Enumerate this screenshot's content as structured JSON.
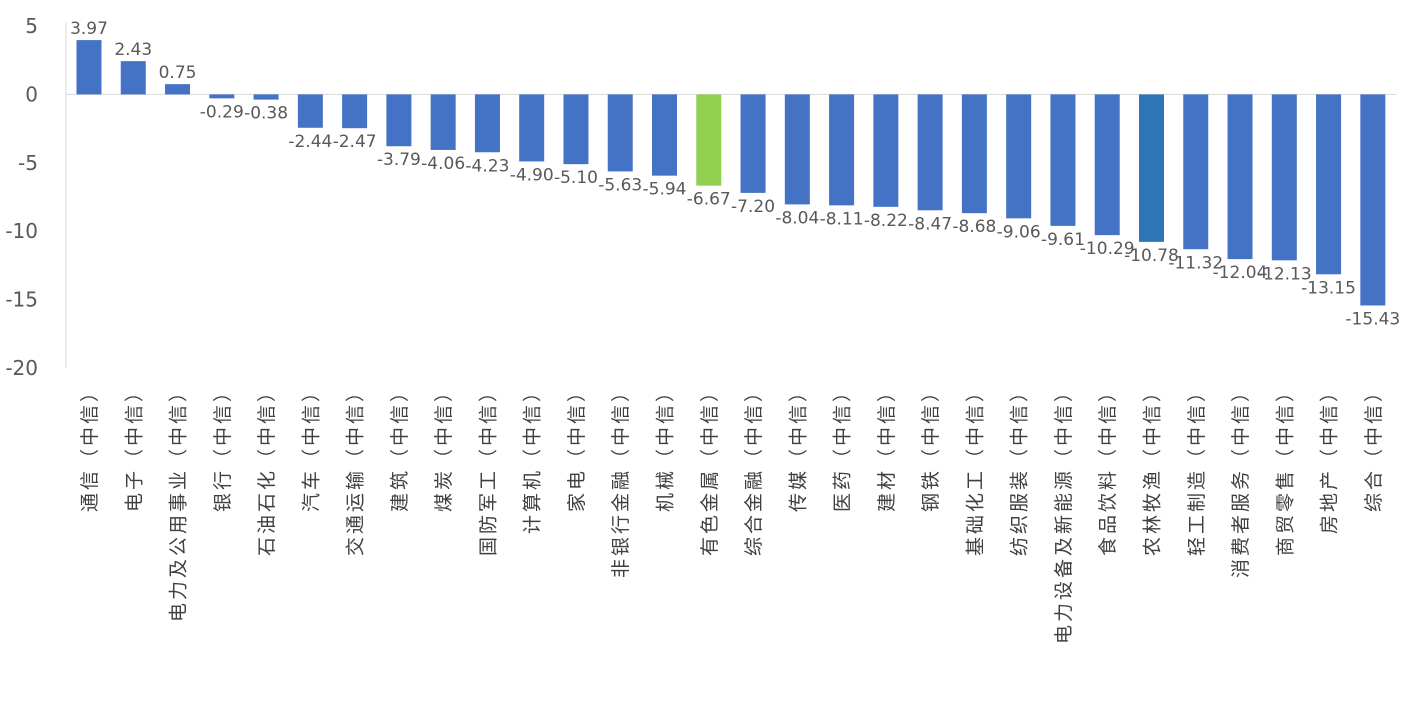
{
  "chart_data": {
    "type": "bar",
    "title": "",
    "xlabel": "",
    "ylabel": "",
    "ylim": [
      -20,
      5
    ],
    "yticks": [
      5,
      0,
      -5,
      -10,
      -15,
      -20
    ],
    "grid": false,
    "legend": "none",
    "categories": [
      "通信（中信）",
      "电子（中信）",
      "电力及公用事业（中信）",
      "银行（中信）",
      "石油石化（中信）",
      "汽车（中信）",
      "交通运输（中信）",
      "建筑（中信）",
      "煤炭（中信）",
      "国防军工（中信）",
      "计算机（中信）",
      "家电（中信）",
      "非银行金融（中信）",
      "机械（中信）",
      "有色金属（中信）",
      "综合金融（中信）",
      "传媒（中信）",
      "医药（中信）",
      "建材（中信）",
      "钢铁（中信）",
      "基础化工（中信）",
      "纺织服装（中信）",
      "电力设备及新能源（中信）",
      "食品饮料（中信）",
      "农林牧渔（中信）",
      "轻工制造（中信）",
      "消费者服务（中信）",
      "商贸零售（中信）",
      "房地产（中信）",
      "综合（中信）"
    ],
    "values": [
      3.97,
      2.43,
      0.75,
      -0.29,
      -0.38,
      -2.44,
      -2.47,
      -3.79,
      -4.06,
      -4.23,
      -4.9,
      -5.1,
      -5.63,
      -5.94,
      -6.67,
      -7.2,
      -8.04,
      -8.11,
      -8.22,
      -8.47,
      -8.68,
      -9.06,
      -9.61,
      -10.29,
      -10.78,
      -11.32,
      -12.04,
      -12.13,
      -13.15,
      -15.43
    ],
    "value_labels": [
      "3.97",
      "2.43",
      "0.75",
      "-0.29",
      "-0.38",
      "-2.44",
      "-2.47",
      "-3.79",
      "-4.06",
      "-4.23",
      "-4.90",
      "-5.10",
      "-5.63",
      "-5.94",
      "-6.67",
      "-7.20",
      "-8.04",
      "-8.11",
      "-8.22",
      "-8.47",
      "-8.68",
      "-9.06",
      "-9.61",
      "-10.29",
      "-10.78",
      "-11.32",
      "-12.04",
      "-12.13",
      "-13.15",
      "-15.43"
    ],
    "colors": {
      "default": "#4472C4",
      "highlight": "#92D050",
      "accent": "#2E75B6",
      "axis": "#D9D9D9",
      "text": "#595959"
    },
    "highlights": {
      "14": "highlight",
      "24": "accent"
    }
  }
}
